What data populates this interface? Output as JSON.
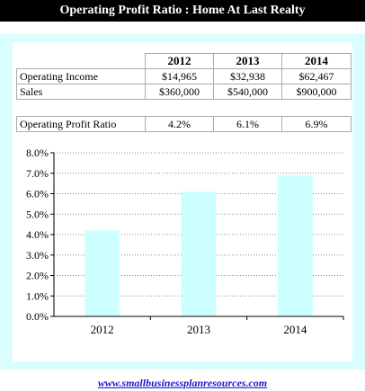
{
  "title": "Operating Profit Ratio : Home At Last Realty",
  "table": {
    "years": [
      "2012",
      "2013",
      "2014"
    ],
    "rows": [
      {
        "label": "Operating Income",
        "values": [
          "$14,965",
          "$32,938",
          "$62,467"
        ]
      },
      {
        "label": "Sales",
        "values": [
          "$360,000",
          "$540,000",
          "$900,000"
        ]
      }
    ],
    "ratio_row": {
      "label": "Operating Profit Ratio",
      "values": [
        "4.2%",
        "6.1%",
        "6.9%"
      ]
    }
  },
  "chart_data": {
    "type": "bar",
    "categories": [
      "2012",
      "2013",
      "2014"
    ],
    "values": [
      4.2,
      6.1,
      6.9
    ],
    "ylim": [
      0,
      8
    ],
    "yticks": [
      "0.0%",
      "1.0%",
      "2.0%",
      "3.0%",
      "4.0%",
      "5.0%",
      "6.0%",
      "7.0%",
      "8.0%"
    ],
    "grid": true,
    "bar_color": "#ccffff",
    "title": "",
    "xlabel": "",
    "ylabel": ""
  },
  "footer": {
    "link": "www.smallbusinessplanresources.com"
  },
  "colors": {
    "panel": "#dafdfd",
    "link": "#1a1ad0"
  }
}
